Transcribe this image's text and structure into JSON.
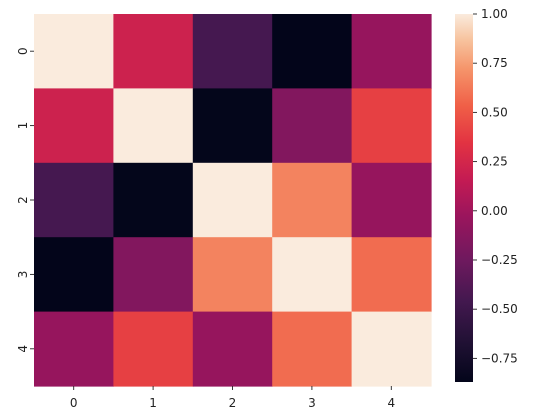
{
  "chart_data": {
    "type": "heatmap",
    "title": "",
    "xlabel": "",
    "ylabel": "",
    "x_categories": [
      "0",
      "1",
      "2",
      "3",
      "4"
    ],
    "y_categories": [
      "0",
      "1",
      "2",
      "3",
      "4"
    ],
    "values": [
      [
        1.0,
        0.21,
        -0.45,
        -0.87,
        -0.05
      ],
      [
        0.21,
        1.0,
        -0.86,
        -0.15,
        0.4
      ],
      [
        -0.45,
        -0.86,
        1.0,
        0.66,
        -0.05
      ],
      [
        -0.87,
        -0.15,
        0.66,
        1.0,
        0.58
      ],
      [
        -0.05,
        0.4,
        -0.05,
        0.58,
        1.0
      ]
    ],
    "colorbar": {
      "vmin": -0.87,
      "vmax": 1.0,
      "ticks": [
        -0.75,
        -0.5,
        -0.25,
        0.0,
        0.25,
        0.5,
        0.75,
        1.0
      ],
      "tick_labels": [
        "−0.75",
        "−0.50",
        "−0.25",
        "0.00",
        "0.25",
        "0.50",
        "0.75",
        "1.00"
      ],
      "colormap": "rocket"
    },
    "grid": false
  }
}
